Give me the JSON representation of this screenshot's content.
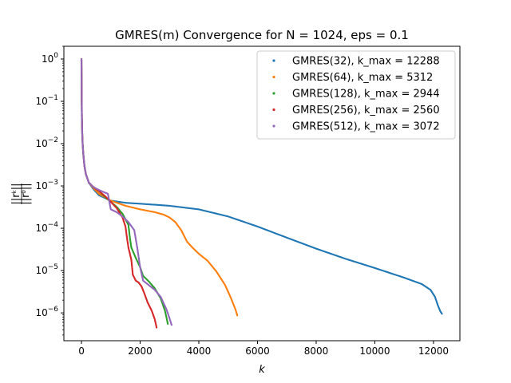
{
  "chart_data": {
    "type": "scatter",
    "title": "GMRES(m) Convergence for N = 1024, eps = 0.1",
    "xlabel": "k",
    "ylabel": "||r^k|| / ||r^0||",
    "xlim": [
      -600,
      12900
    ],
    "ylim": [
      2.2e-07,
      2.0
    ],
    "yscale": "log",
    "grid": false,
    "legend_position": "top-right",
    "x_ticks": [
      0,
      2000,
      4000,
      6000,
      8000,
      10000,
      12000
    ],
    "x_tick_labels": [
      "0",
      "2000",
      "4000",
      "6000",
      "8000",
      "10000",
      "12000"
    ],
    "y_ticks": [
      1e-06,
      1e-05,
      0.0001,
      0.001,
      0.01,
      0.1,
      1
    ],
    "y_tick_labels": [
      {
        "base": "10",
        "exp": "−6"
      },
      {
        "base": "10",
        "exp": "−5"
      },
      {
        "base": "10",
        "exp": "−4"
      },
      {
        "base": "10",
        "exp": "−3"
      },
      {
        "base": "10",
        "exp": "−2"
      },
      {
        "base": "10",
        "exp": "−1"
      },
      {
        "base": "10",
        "exp": "0"
      }
    ],
    "series": [
      {
        "name": "GMRES(32), k_max = 12288",
        "color": "#1f77b4",
        "points": [
          [
            0,
            1.0
          ],
          [
            3,
            0.45
          ],
          [
            8,
            0.1
          ],
          [
            15,
            0.04
          ],
          [
            25,
            0.018
          ],
          [
            40,
            0.01
          ],
          [
            60,
            0.006
          ],
          [
            100,
            0.003
          ],
          [
            150,
            0.0019
          ],
          [
            250,
            0.0012
          ],
          [
            400,
            0.00085
          ],
          [
            600,
            0.0006
          ],
          [
            1000,
            0.00045
          ],
          [
            1500,
            0.0004
          ],
          [
            2000,
            0.00038
          ],
          [
            2500,
            0.00036
          ],
          [
            3000,
            0.00034
          ],
          [
            4000,
            0.00028
          ],
          [
            5000,
            0.00019
          ],
          [
            6000,
            0.00011
          ],
          [
            7000,
            6e-05
          ],
          [
            8000,
            3.3e-05
          ],
          [
            9000,
            1.9e-05
          ],
          [
            10000,
            1.15e-05
          ],
          [
            11000,
            6.8e-06
          ],
          [
            11600,
            4.8e-06
          ],
          [
            11900,
            3.5e-06
          ],
          [
            12050,
            2.4e-06
          ],
          [
            12150,
            1.5e-06
          ],
          [
            12230,
            1.1e-06
          ],
          [
            12288,
            9.5e-07
          ]
        ]
      },
      {
        "name": "GMRES(64), k_max = 5312",
        "color": "#ff7f0e",
        "points": [
          [
            0,
            1.0
          ],
          [
            3,
            0.45
          ],
          [
            8,
            0.1
          ],
          [
            15,
            0.04
          ],
          [
            25,
            0.018
          ],
          [
            40,
            0.01
          ],
          [
            60,
            0.006
          ],
          [
            100,
            0.003
          ],
          [
            150,
            0.0019
          ],
          [
            250,
            0.0012
          ],
          [
            400,
            0.0009
          ],
          [
            600,
            0.00065
          ],
          [
            1000,
            0.00045
          ],
          [
            1500,
            0.00034
          ],
          [
            2000,
            0.00028
          ],
          [
            2500,
            0.00024
          ],
          [
            2800,
            0.00021
          ],
          [
            3000,
            0.00018
          ],
          [
            3200,
            0.00014
          ],
          [
            3400,
            9e-05
          ],
          [
            3600,
            4.8e-05
          ],
          [
            3800,
            3.4e-05
          ],
          [
            4000,
            2.5e-05
          ],
          [
            4300,
            1.7e-05
          ],
          [
            4600,
            9.5e-06
          ],
          [
            4900,
            4.5e-06
          ],
          [
            5100,
            2.2e-06
          ],
          [
            5250,
            1.2e-06
          ],
          [
            5312,
            8.7e-07
          ]
        ]
      },
      {
        "name": "GMRES(128), k_max = 2944",
        "color": "#2ca02c",
        "points": [
          [
            0,
            1.0
          ],
          [
            3,
            0.45
          ],
          [
            8,
            0.1
          ],
          [
            15,
            0.04
          ],
          [
            25,
            0.018
          ],
          [
            40,
            0.01
          ],
          [
            60,
            0.006
          ],
          [
            100,
            0.003
          ],
          [
            150,
            0.0019
          ],
          [
            250,
            0.0012
          ],
          [
            400,
            0.00095
          ],
          [
            600,
            0.00075
          ],
          [
            800,
            0.00055
          ],
          [
            1000,
            0.00042
          ],
          [
            1200,
            0.00032
          ],
          [
            1400,
            0.00022
          ],
          [
            1600,
            0.00012
          ],
          [
            1650,
            6e-05
          ],
          [
            1700,
            3.5e-05
          ],
          [
            1850,
            2e-05
          ],
          [
            2000,
            1.2e-05
          ],
          [
            2100,
            7.5e-06
          ],
          [
            2300,
            5.5e-06
          ],
          [
            2500,
            3.8e-06
          ],
          [
            2700,
            2.2e-06
          ],
          [
            2850,
            1.1e-06
          ],
          [
            2944,
            5.5e-07
          ]
        ]
      },
      {
        "name": "GMRES(256), k_max = 2560",
        "color": "#d62728",
        "points": [
          [
            0,
            1.0
          ],
          [
            3,
            0.45
          ],
          [
            8,
            0.1
          ],
          [
            15,
            0.04
          ],
          [
            25,
            0.018
          ],
          [
            40,
            0.01
          ],
          [
            60,
            0.006
          ],
          [
            100,
            0.003
          ],
          [
            150,
            0.0019
          ],
          [
            250,
            0.0012
          ],
          [
            400,
            0.00095
          ],
          [
            600,
            0.00075
          ],
          [
            800,
            0.00058
          ],
          [
            1000,
            0.00042
          ],
          [
            1200,
            0.0003
          ],
          [
            1400,
            0.00018
          ],
          [
            1500,
            0.00011
          ],
          [
            1550,
            6e-05
          ],
          [
            1600,
            3.5e-05
          ],
          [
            1700,
            1.8e-05
          ],
          [
            1750,
            8e-06
          ],
          [
            1850,
            5.8e-06
          ],
          [
            1950,
            5.2e-06
          ],
          [
            2050,
            4.2e-06
          ],
          [
            2150,
            2.8e-06
          ],
          [
            2250,
            1.8e-06
          ],
          [
            2400,
            1.1e-06
          ],
          [
            2500,
            7e-07
          ],
          [
            2560,
            4.5e-07
          ]
        ]
      },
      {
        "name": "GMRES(512), k_max = 3072",
        "color": "#9467bd",
        "points": [
          [
            0,
            1.0
          ],
          [
            3,
            0.45
          ],
          [
            8,
            0.1
          ],
          [
            15,
            0.04
          ],
          [
            25,
            0.018
          ],
          [
            40,
            0.01
          ],
          [
            60,
            0.006
          ],
          [
            100,
            0.003
          ],
          [
            150,
            0.0019
          ],
          [
            250,
            0.0012
          ],
          [
            400,
            0.00095
          ],
          [
            600,
            0.0008
          ],
          [
            900,
            0.00065
          ],
          [
            1000,
            0.00028
          ],
          [
            1200,
            0.00024
          ],
          [
            1400,
            0.00019
          ],
          [
            1600,
            0.00014
          ],
          [
            1800,
            9e-05
          ],
          [
            1900,
            3.5e-05
          ],
          [
            2000,
            1.2e-05
          ],
          [
            2100,
            5.8e-06
          ],
          [
            2300,
            4.5e-06
          ],
          [
            2500,
            3.5e-06
          ],
          [
            2700,
            2.4e-06
          ],
          [
            2900,
            1.2e-06
          ],
          [
            3000,
            7.5e-07
          ],
          [
            3072,
            5.2e-07
          ]
        ]
      }
    ]
  }
}
